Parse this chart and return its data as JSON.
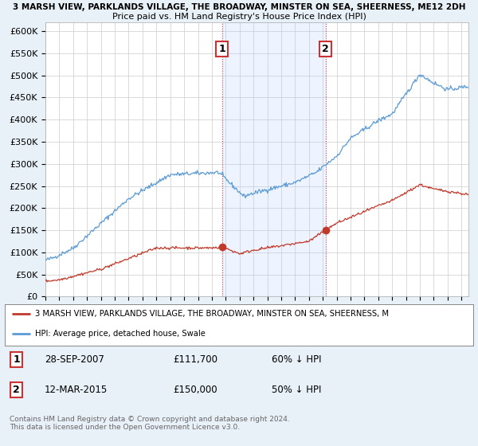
{
  "title_line1": "3 MARSH VIEW, PARKLANDS VILLAGE, THE BROADWAY, MINSTER ON SEA, SHEERNESS, ME12 2DH",
  "title_line2": "Price paid vs. HM Land Registry's House Price Index (HPI)",
  "ylabel_ticks": [
    "£0",
    "£50K",
    "£100K",
    "£150K",
    "£200K",
    "£250K",
    "£300K",
    "£350K",
    "£400K",
    "£450K",
    "£500K",
    "£550K",
    "£600K"
  ],
  "ylim": [
    0,
    620000
  ],
  "yticks": [
    0,
    50000,
    100000,
    150000,
    200000,
    250000,
    300000,
    350000,
    400000,
    450000,
    500000,
    550000,
    600000
  ],
  "sale1_date": 2007.75,
  "sale1_price": 111700,
  "sale1_label": "1",
  "sale2_date": 2015.2,
  "sale2_price": 150000,
  "sale2_label": "2",
  "hpi_color": "#5b9bd5",
  "price_color": "#c0392b",
  "vline_color": "#c0392b",
  "background_color": "#e8f0f8",
  "plot_bg_color": "#ffffff",
  "legend_red_label": "3 MARSH VIEW, PARKLANDS VILLAGE, THE BROADWAY, MINSTER ON SEA, SHEERNESS, M",
  "legend_blue_label": "HPI: Average price, detached house, Swale",
  "table_row1": [
    "1",
    "28-SEP-2007",
    "£111,700",
    "60% ↓ HPI"
  ],
  "table_row2": [
    "2",
    "12-MAR-2015",
    "£150,000",
    "50% ↓ HPI"
  ],
  "footer": "Contains HM Land Registry data © Crown copyright and database right 2024.\nThis data is licensed under the Open Government Licence v3.0."
}
